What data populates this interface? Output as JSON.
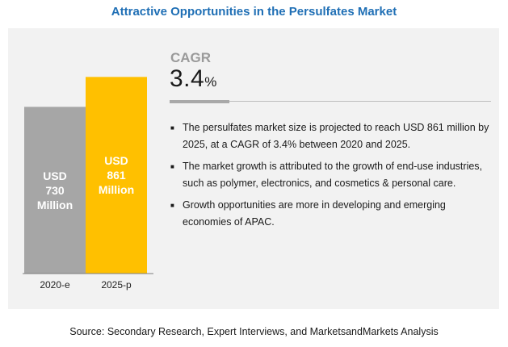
{
  "title": "Attractive Opportunities in the Persulfates Market",
  "chart_data": {
    "type": "bar",
    "categories": [
      "2020-e",
      "2025-p"
    ],
    "values": [
      730,
      861
    ],
    "value_labels": [
      [
        "USD",
        "730",
        "Million"
      ],
      [
        "USD",
        "861",
        "Million"
      ]
    ],
    "colors": [
      "#a6a6a6",
      "#ffc000"
    ],
    "ylim": [
      0,
      1000
    ],
    "grid": false,
    "legend": "none"
  },
  "cagr": {
    "label": "CAGR",
    "value": "3.4",
    "unit": "%"
  },
  "bullets": [
    "The persulfates market size is projected to reach USD 861 million by 2025, at a CAGR of 3.4% between 2020 and 2025.",
    "The market growth is attributed to the growth of end-use industries, such as polymer, electronics, and cosmetics & personal care.",
    "Growth opportunities are more in developing and emerging economies of APAC."
  ],
  "source": "Source: Secondary Research, Expert Interviews, and MarketsandMarkets Analysis"
}
